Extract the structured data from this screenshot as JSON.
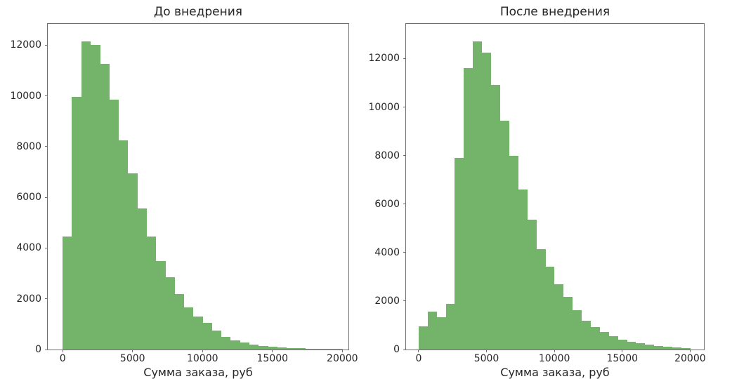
{
  "figure": {
    "background_color": "#ffffff",
    "bar_color": "#74b36a",
    "axis_color": "#6f6f6f",
    "text_color": "#262626"
  },
  "chart_data": [
    {
      "id": "before",
      "type": "bar",
      "title": "До внедрения",
      "xlabel": "Сумма заказа, руб",
      "ylabel": "",
      "grid": false,
      "legend": null,
      "bin_start": 0,
      "bin_width": 666.667,
      "bin_count": 30,
      "values": [
        4450,
        9950,
        12150,
        12000,
        11250,
        9850,
        8250,
        6950,
        5550,
        4450,
        3500,
        2850,
        2200,
        1650,
        1300,
        1050,
        750,
        500,
        360,
        270,
        200,
        150,
        115,
        85,
        65,
        48,
        36,
        27,
        20,
        15
      ],
      "xticks": [
        0,
        5000,
        10000,
        15000,
        20000
      ],
      "yticks": [
        0,
        2000,
        4000,
        6000,
        8000,
        10000,
        12000
      ],
      "xlim": [
        -1065,
        20435
      ],
      "ylim": [
        0,
        12840
      ]
    },
    {
      "id": "after",
      "type": "bar",
      "title": "После внедрения",
      "xlabel": "Сумма заказа, руб",
      "ylabel": "",
      "grid": false,
      "legend": null,
      "bin_start": 0,
      "bin_width": 666.667,
      "bin_count": 30,
      "values": [
        950,
        1550,
        1330,
        1890,
        7900,
        11600,
        12700,
        12250,
        10900,
        9450,
        8000,
        6600,
        5350,
        4150,
        3430,
        2700,
        2180,
        1620,
        1200,
        930,
        720,
        550,
        420,
        330,
        260,
        200,
        155,
        115,
        85,
        60
      ],
      "xticks": [
        0,
        5000,
        10000,
        15000,
        20000
      ],
      "yticks": [
        0,
        2000,
        4000,
        6000,
        8000,
        10000,
        12000
      ],
      "xlim": [
        -927,
        21015
      ],
      "ylim": [
        0,
        13430
      ]
    }
  ]
}
